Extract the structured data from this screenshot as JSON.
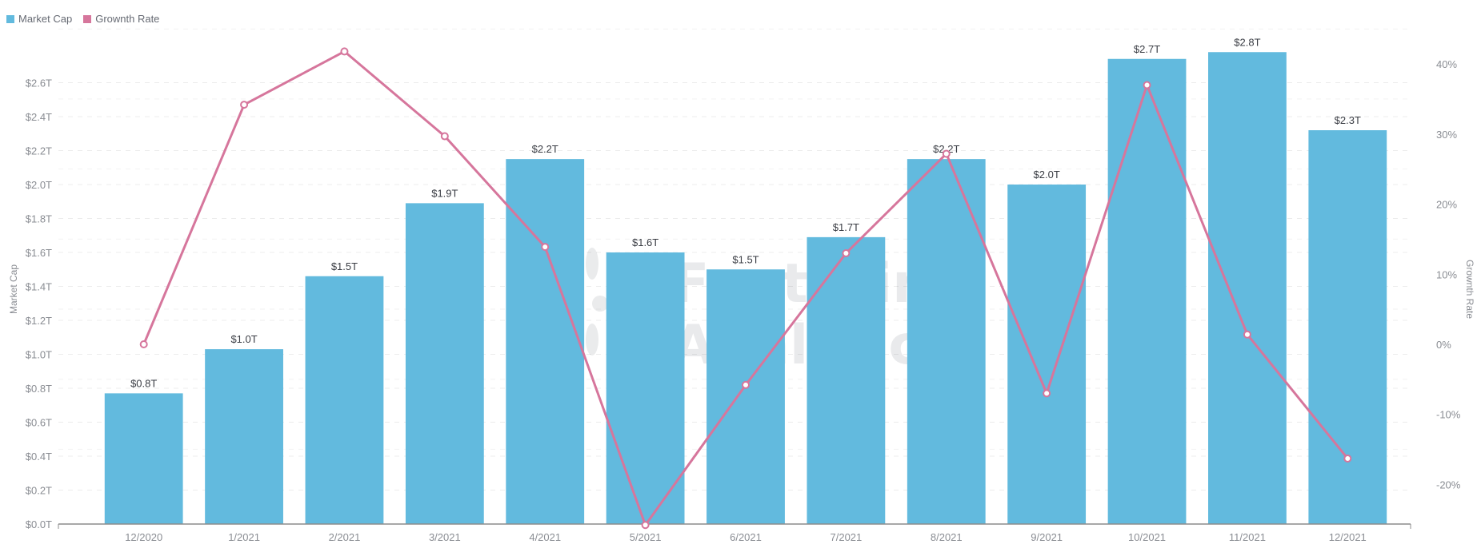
{
  "legend": [
    {
      "label": "Market Cap",
      "color": "#62bade"
    },
    {
      "label": "Grownth Rate",
      "color": "#d6769c"
    }
  ],
  "watermark": {
    "line1": "Footprint",
    "line2": "Analytics"
  },
  "chart_data": {
    "type": "bar+line",
    "title": "",
    "categories": [
      "12/2020",
      "1/2021",
      "2/2021",
      "3/2021",
      "4/2021",
      "5/2021",
      "6/2021",
      "7/2021",
      "8/2021",
      "9/2021",
      "10/2021",
      "11/2021",
      "12/2021"
    ],
    "series": [
      {
        "name": "Market Cap",
        "type": "bar",
        "axis": "left",
        "color": "#62bade",
        "values": [
          0.77,
          1.03,
          1.46,
          1.89,
          2.15,
          1.6,
          1.5,
          1.69,
          2.15,
          2.0,
          2.74,
          2.78,
          2.32
        ],
        "labels": [
          "$0.8T",
          "$1.0T",
          "$1.5T",
          "$1.9T",
          "$2.2T",
          "$1.6T",
          "$1.5T",
          "$1.7T",
          "$2.2T",
          "$2.0T",
          "$2.7T",
          "$2.8T",
          "$2.3T"
        ]
      },
      {
        "name": "Grownth Rate",
        "type": "line",
        "axis": "right",
        "color": "#d6769c",
        "values": [
          0.0,
          34.2,
          41.8,
          29.7,
          13.9,
          -25.8,
          -5.8,
          13.0,
          27.2,
          -7.0,
          37.0,
          1.4,
          -16.3
        ]
      }
    ],
    "y_left": {
      "label": "Market Cap",
      "ticks": [
        "$0.0T",
        "$0.2T",
        "$0.4T",
        "$0.6T",
        "$0.8T",
        "$1.0T",
        "$1.2T",
        "$1.4T",
        "$1.6T",
        "$1.8T",
        "$2.0T",
        "$2.2T",
        "$2.4T",
        "$2.6T"
      ],
      "range": [
        0,
        2.6
      ]
    },
    "y_right": {
      "label": "Grownth Rate",
      "ticks": [
        "-20%",
        "-10%",
        "0%",
        "10%",
        "20%",
        "30%",
        "40%"
      ],
      "range": [
        -26,
        46
      ]
    },
    "grid": true,
    "legend_position": "top-left"
  }
}
